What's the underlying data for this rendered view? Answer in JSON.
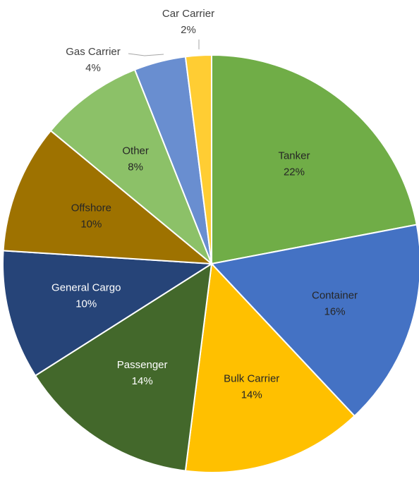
{
  "chart_data": {
    "type": "pie",
    "categories": [
      "Tanker",
      "Container",
      "Bulk Carrier",
      "Passenger",
      "General Cargo",
      "Offshore",
      "Other",
      "Gas Carrier",
      "Car Carrier"
    ],
    "values": [
      22,
      16,
      14,
      14,
      10,
      10,
      8,
      4,
      2
    ],
    "value_labels": [
      "22%",
      "16%",
      "14%",
      "14%",
      "10%",
      "10%",
      "8%",
      "4%",
      "2%"
    ],
    "colors": [
      "#70ad47",
      "#4472c4",
      "#ffc000",
      "#43682b",
      "#264478",
      "#9e7200",
      "#8cc168",
      "#698ed0",
      "#ffcd33"
    ]
  }
}
